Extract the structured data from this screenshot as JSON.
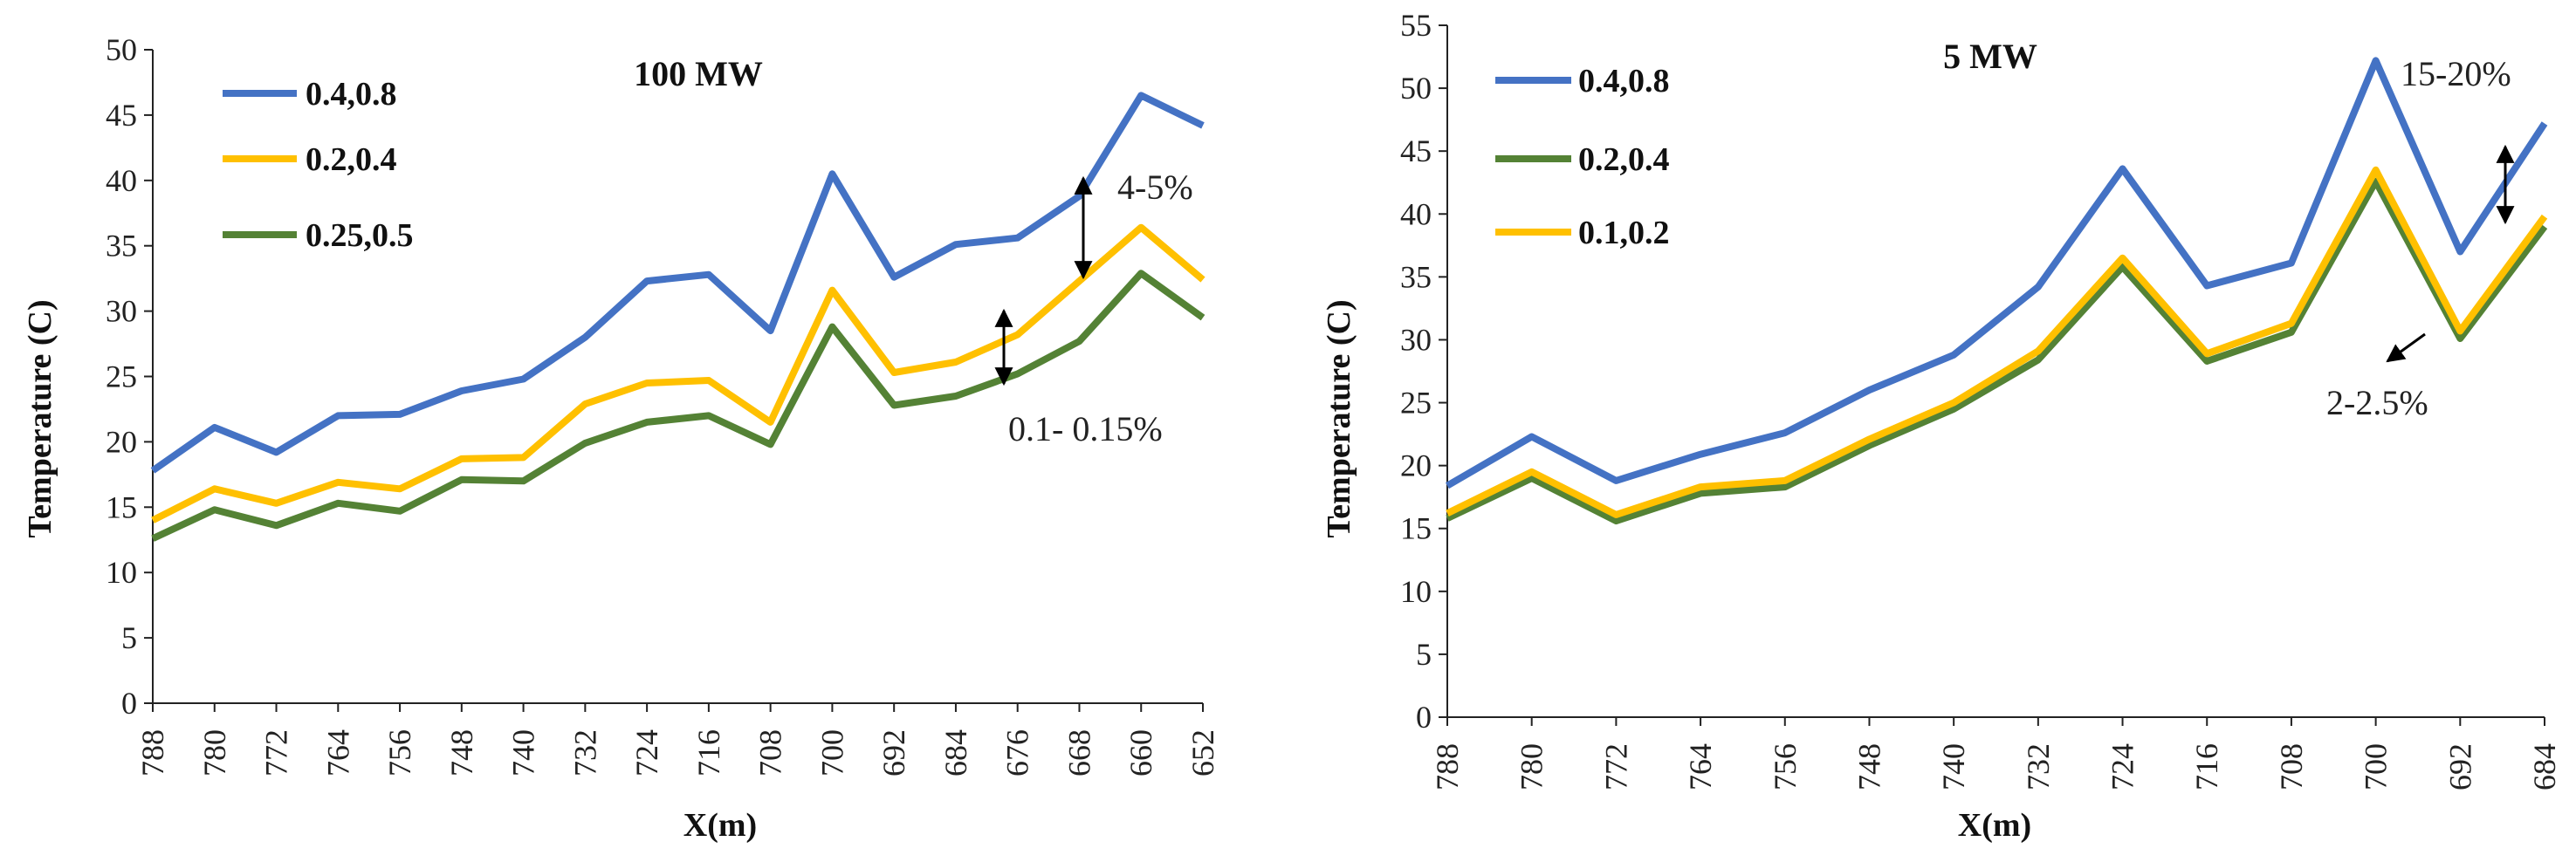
{
  "chart_data": [
    {
      "type": "line",
      "title": "100 MW",
      "xlabel": "X(m)",
      "ylabel": "Temperature (C)",
      "ylim": [
        0,
        50
      ],
      "yticks": [
        0,
        5,
        10,
        15,
        20,
        25,
        30,
        35,
        40,
        45,
        50
      ],
      "categories": [
        "788",
        "780",
        "772",
        "764",
        "756",
        "748",
        "740",
        "732",
        "724",
        "716",
        "708",
        "700",
        "692",
        "684",
        "676",
        "668",
        "660",
        "652"
      ],
      "series": [
        {
          "name": "0.4,0.8",
          "color": "#4472C4",
          "values": [
            17.8,
            21.1,
            19.2,
            22.0,
            22.1,
            23.9,
            24.8,
            28.0,
            32.3,
            32.8,
            28.5,
            40.5,
            32.6,
            35.1,
            35.6,
            38.8,
            46.5,
            44.2
          ]
        },
        {
          "name": "0.2,0.4",
          "color": "#FFC000",
          "values": [
            14.0,
            16.4,
            15.3,
            16.9,
            16.4,
            18.7,
            18.8,
            22.9,
            24.5,
            24.7,
            21.5,
            31.6,
            25.3,
            26.1,
            28.2,
            32.3,
            36.4,
            32.4
          ]
        },
        {
          "name": "0.25,0.5",
          "color": "#548235",
          "values": [
            12.6,
            14.8,
            13.6,
            15.3,
            14.7,
            17.1,
            17.0,
            19.9,
            21.5,
            22.0,
            19.8,
            28.8,
            22.8,
            23.5,
            25.2,
            27.7,
            32.9,
            29.5
          ]
        }
      ],
      "annotations": [
        "4-5%",
        "0.1- 0.15%"
      ]
    },
    {
      "type": "line",
      "title": "5 MW",
      "xlabel": "X(m)",
      "ylabel": "Temperature (C)",
      "ylim": [
        0,
        55
      ],
      "yticks": [
        0,
        5,
        10,
        15,
        20,
        25,
        30,
        35,
        40,
        45,
        50,
        55
      ],
      "categories": [
        "788",
        "780",
        "772",
        "764",
        "756",
        "748",
        "740",
        "732",
        "724",
        "716",
        "708",
        "700",
        "692",
        "684"
      ],
      "series": [
        {
          "name": "0.4,0.8",
          "color": "#4472C4",
          "values": [
            18.4,
            22.3,
            18.8,
            20.9,
            22.6,
            26.0,
            28.8,
            34.2,
            43.6,
            34.3,
            36.1,
            52.2,
            37.0,
            47.2
          ]
        },
        {
          "name": "0.2,0.4",
          "color": "#548235",
          "values": [
            15.8,
            19.0,
            15.6,
            17.8,
            18.3,
            21.6,
            24.5,
            28.4,
            35.8,
            28.3,
            30.6,
            42.6,
            30.1,
            39.0
          ]
        },
        {
          "name": "0.1,0.2",
          "color": "#FFC000",
          "values": [
            16.2,
            19.5,
            16.1,
            18.3,
            18.8,
            22.1,
            25.0,
            29.1,
            36.5,
            28.9,
            31.3,
            43.5,
            30.7,
            39.8
          ]
        }
      ],
      "annotations": [
        "15-20%",
        "2-2.5%"
      ]
    }
  ]
}
